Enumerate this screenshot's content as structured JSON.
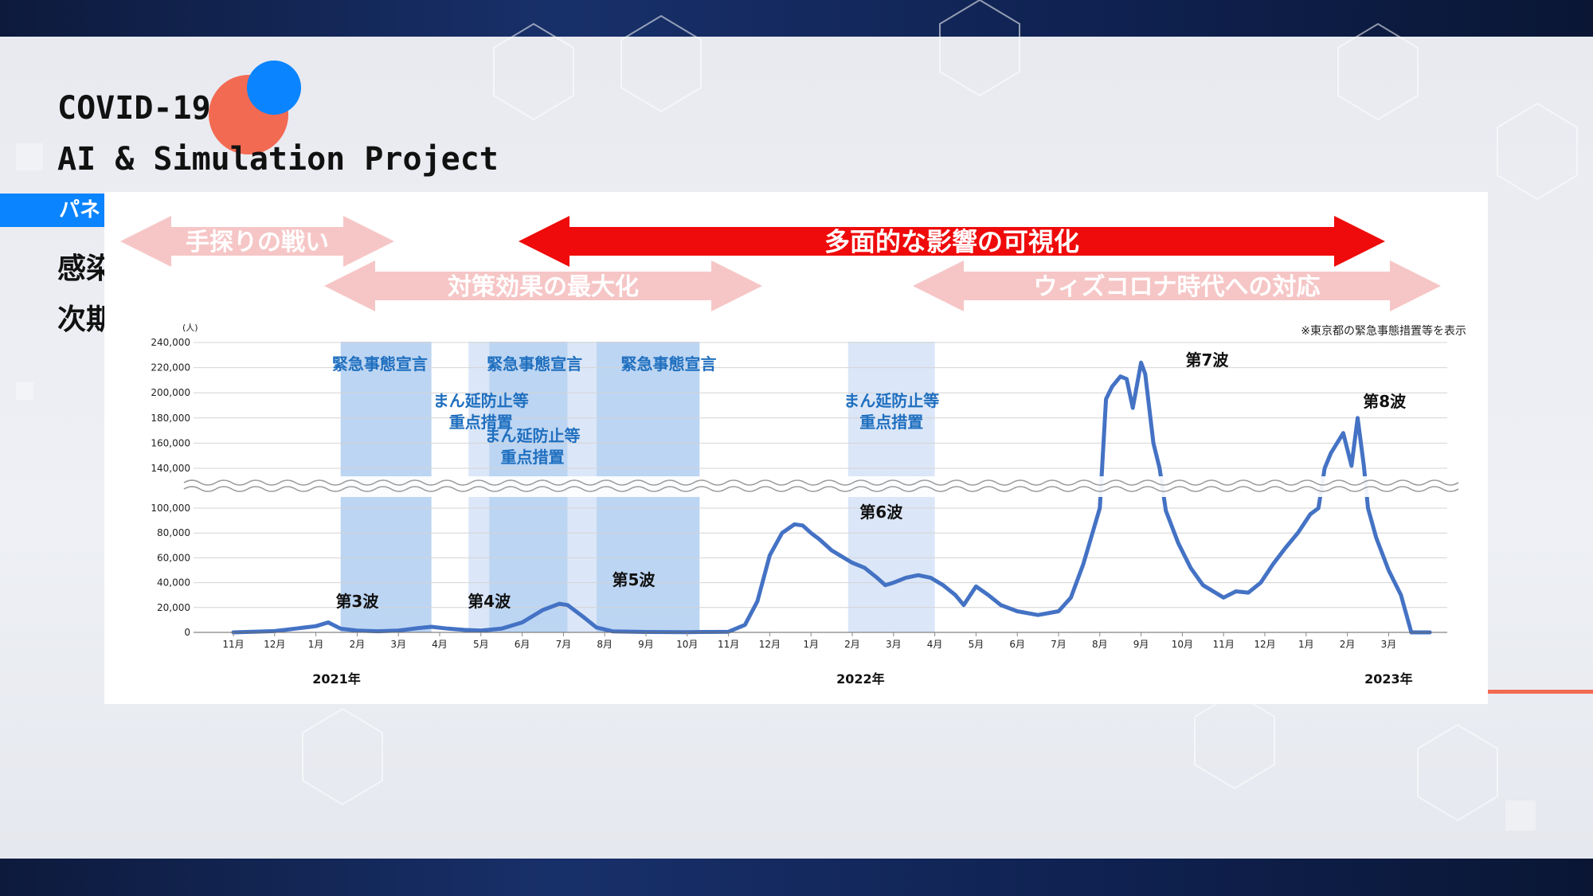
{
  "branding": {
    "title_line1": "COVID-19",
    "title_line2": "AI & Simulation Project"
  },
  "side": {
    "tag": "パネ",
    "line1": "感染",
    "line2": "次期"
  },
  "colors": {
    "line": "#4472c4",
    "emergency": "#bcd5f3",
    "semi": "#dbe7f8",
    "red_arrow": "#ef0b0b",
    "pink_arrow": "#f6c6c6",
    "label_blue": "#1f6fbf"
  },
  "chart_data": {
    "type": "line",
    "ylabel": "(人)",
    "y_ticks_lower": [
      "100,000",
      "80,000",
      "60,000",
      "40,000",
      "20,000",
      "0"
    ],
    "y_ticks_upper": [
      "240,000",
      "220,000",
      "200,000",
      "180,000",
      "160,000",
      "140,000"
    ],
    "ylim_lower": [
      0,
      100000
    ],
    "ylim_upper": [
      140000,
      240000
    ],
    "axis_break": "between 100,000 and 140,000",
    "grid": true,
    "note": "※東京都の緊急事態措置等を表示",
    "x_labels": [
      "11月",
      "12月",
      "1月",
      "2月",
      "3月",
      "4月",
      "5月",
      "6月",
      "7月",
      "8月",
      "9月",
      "10月",
      "11月",
      "12月",
      "1月",
      "2月",
      "3月",
      "4月",
      "5月",
      "6月",
      "7月",
      "8月",
      "9月",
      "10月",
      "11月",
      "12月",
      "1月",
      "2月",
      "3月"
    ],
    "years": [
      "2021年",
      "2022年",
      "2023年"
    ],
    "series": [
      {
        "values": [
          [
            0,
            0
          ],
          [
            1,
            1000
          ],
          [
            1.5,
            3000
          ],
          [
            2,
            5000
          ],
          [
            2.3,
            8000
          ],
          [
            2.6,
            3000
          ],
          [
            3,
            1500
          ],
          [
            3.5,
            900
          ],
          [
            4,
            1500
          ],
          [
            4.5,
            3500
          ],
          [
            4.8,
            4500
          ],
          [
            5.2,
            3000
          ],
          [
            5.6,
            2000
          ],
          [
            6,
            1500
          ],
          [
            6.5,
            3000
          ],
          [
            7,
            8000
          ],
          [
            7.5,
            18000
          ],
          [
            7.9,
            23000
          ],
          [
            8.1,
            22000
          ],
          [
            8.5,
            12000
          ],
          [
            8.8,
            4000
          ],
          [
            9.2,
            800
          ],
          [
            10,
            300
          ],
          [
            11,
            200
          ],
          [
            12,
            500
          ],
          [
            12.4,
            6000
          ],
          [
            12.7,
            25000
          ],
          [
            13,
            62000
          ],
          [
            13.3,
            80000
          ],
          [
            13.6,
            87000
          ],
          [
            13.8,
            86000
          ],
          [
            14,
            80000
          ],
          [
            14.2,
            75000
          ],
          [
            14.5,
            66000
          ],
          [
            14.7,
            62000
          ],
          [
            15,
            56000
          ],
          [
            15.3,
            52000
          ],
          [
            15.6,
            44000
          ],
          [
            15.8,
            38000
          ],
          [
            16,
            40000
          ],
          [
            16.3,
            44000
          ],
          [
            16.6,
            46000
          ],
          [
            16.9,
            44000
          ],
          [
            17.2,
            38000
          ],
          [
            17.5,
            30000
          ],
          [
            17.7,
            22000
          ],
          [
            18,
            37000
          ],
          [
            18.3,
            30000
          ],
          [
            18.6,
            22000
          ],
          [
            19,
            17000
          ],
          [
            19.5,
            14000
          ],
          [
            20,
            17000
          ],
          [
            20.3,
            28000
          ],
          [
            20.6,
            55000
          ],
          [
            21,
            100000
          ],
          [
            21.15,
            195000
          ],
          [
            21.3,
            205000
          ],
          [
            21.5,
            213000
          ],
          [
            21.65,
            211000
          ],
          [
            21.8,
            188000
          ],
          [
            22,
            224000
          ],
          [
            22.1,
            215000
          ],
          [
            22.3,
            160000
          ],
          [
            22.45,
            140000
          ],
          [
            22.6,
            98000
          ],
          [
            22.9,
            72000
          ],
          [
            23.2,
            52000
          ],
          [
            23.5,
            38000
          ],
          [
            24,
            28000
          ],
          [
            24.3,
            33000
          ],
          [
            24.6,
            32000
          ],
          [
            24.9,
            40000
          ],
          [
            25.2,
            55000
          ],
          [
            25.5,
            68000
          ],
          [
            25.8,
            80000
          ],
          [
            26.1,
            95000
          ],
          [
            26.3,
            100000
          ],
          [
            26.45,
            140000
          ],
          [
            26.6,
            152000
          ],
          [
            26.9,
            168000
          ],
          [
            27.1,
            142000
          ],
          [
            27.25,
            180000
          ],
          [
            27.4,
            142000
          ],
          [
            27.5,
            100000
          ],
          [
            27.7,
            76000
          ],
          [
            28,
            50000
          ],
          [
            28.3,
            30000
          ],
          [
            28.55,
            0
          ],
          [
            29,
            0
          ]
        ]
      }
    ],
    "annotations": {
      "waves": [
        {
          "label": "第3波",
          "x": 2.3,
          "y": 8000
        },
        {
          "label": "第4波",
          "x": 4.8,
          "y": 4500
        },
        {
          "label": "第5波",
          "x": 7.9,
          "y": 23000
        },
        {
          "label": "第6波",
          "x": 13.7,
          "y": 87000
        },
        {
          "label": "第7波",
          "x": 22,
          "y": 224000
        },
        {
          "label": "第8波",
          "x": 27.3,
          "y": 180000
        }
      ],
      "periods": [
        {
          "label": "緊急事態宣言",
          "start": 2.6,
          "end": 4.8,
          "kind": "emergency"
        },
        {
          "label": "まん延防止等 重点措置",
          "start": 5.7,
          "end": 6.2,
          "kind": "semi"
        },
        {
          "label": "緊急事態宣言",
          "start": 6.2,
          "end": 8.1,
          "kind": "emergency"
        },
        {
          "label": "まん延防止等 重点措置",
          "start": 8.1,
          "end": 8.8,
          "kind": "semi"
        },
        {
          "label": "緊急事態宣言",
          "start": 8.8,
          "end": 11.3,
          "kind": "emergency"
        },
        {
          "label": "まん延防止等 重点措置",
          "start": 14.9,
          "end": 17.0,
          "kind": "semi"
        }
      ],
      "arrows": [
        {
          "label": "手探りの戦い",
          "style": "pink"
        },
        {
          "label": "多面的な影響の可視化",
          "style": "red"
        },
        {
          "label": "対策効果の最大化",
          "style": "pink"
        },
        {
          "label": "ウィズコロナ時代への対応",
          "style": "pink"
        }
      ]
    }
  }
}
